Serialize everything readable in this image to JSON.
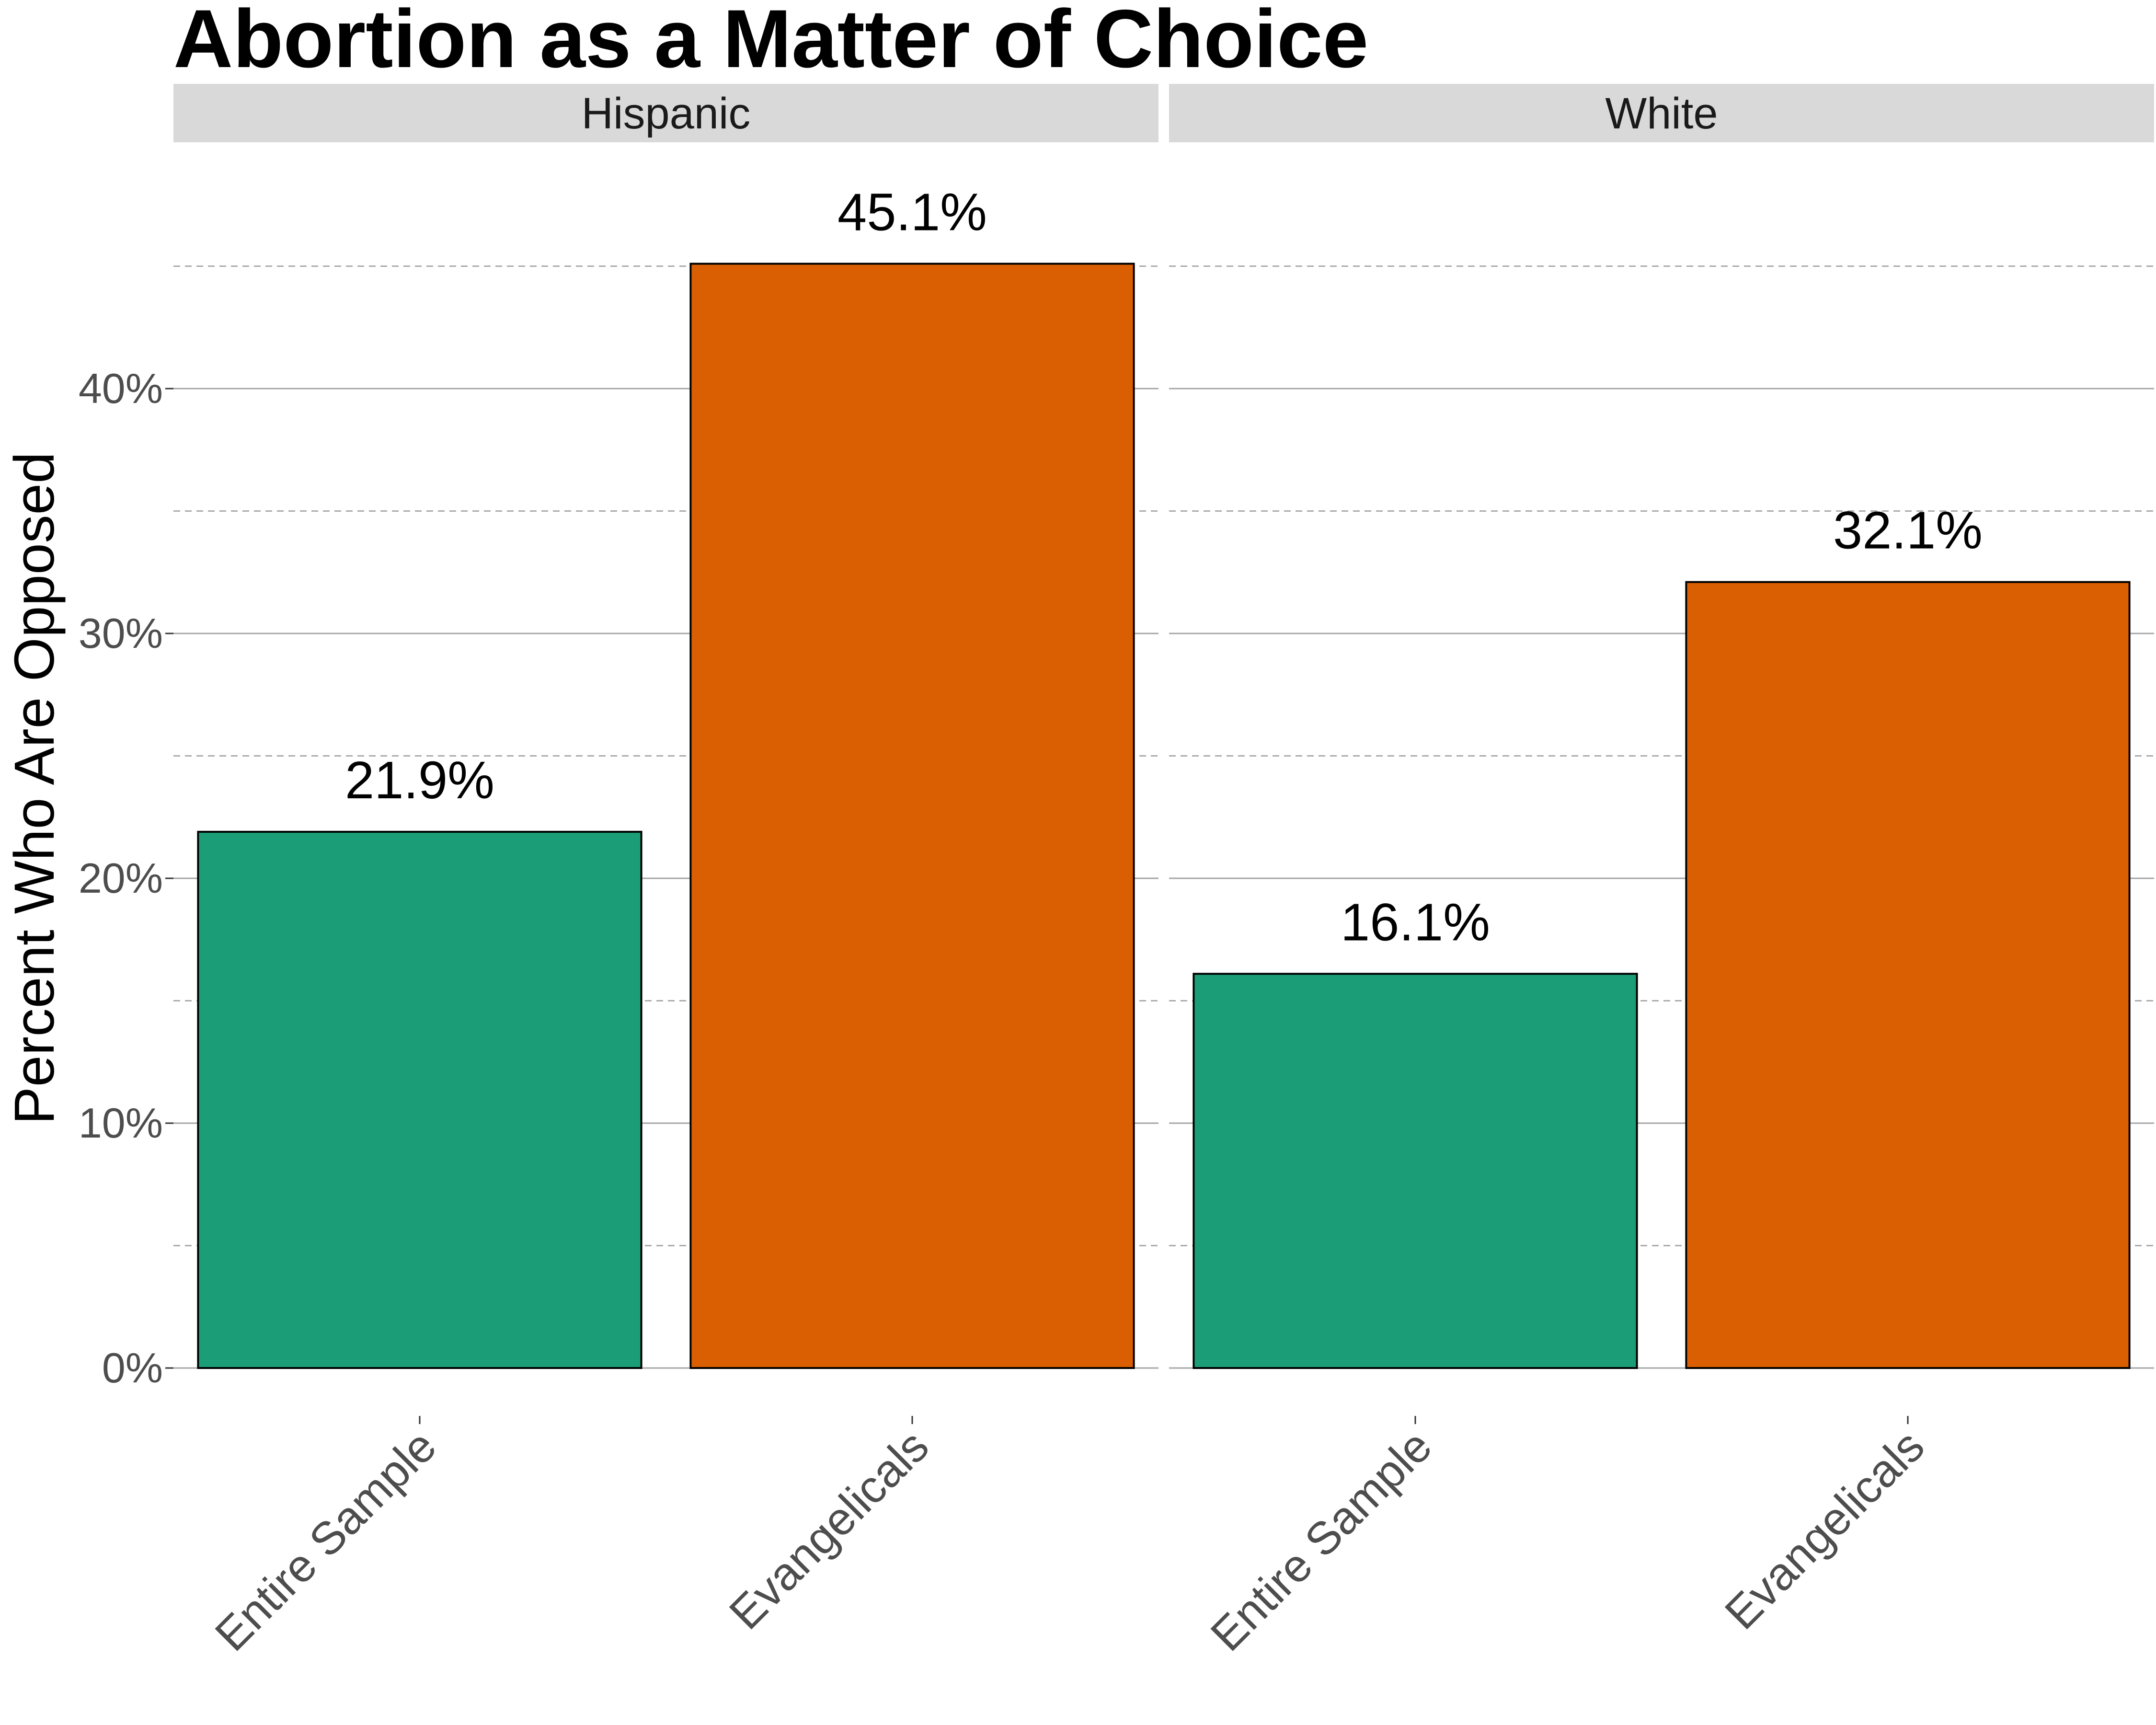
{
  "chart_data": {
    "type": "bar",
    "title": "Abortion as a Matter of Choice",
    "ylabel": "Percent Who Are Opposed",
    "xlabel": "",
    "ylim": [
      0,
      0.48
    ],
    "y_ticks": [
      0,
      0.1,
      0.2,
      0.3,
      0.4
    ],
    "y_tick_labels": [
      "0%",
      "10%",
      "20%",
      "30%",
      "40%"
    ],
    "grid": true,
    "legend": "none",
    "categories": [
      "Entire Sample",
      "Evangelicals"
    ],
    "category_colors": [
      "#1B9E77",
      "#D95F02"
    ],
    "panels": [
      {
        "name": "Hispanic",
        "values": [
          0.219,
          0.451
        ],
        "labels": [
          "21.9%",
          "45.1%"
        ]
      },
      {
        "name": "White",
        "values": [
          0.161,
          0.321
        ],
        "labels": [
          "16.1%",
          "32.1%"
        ]
      }
    ]
  }
}
